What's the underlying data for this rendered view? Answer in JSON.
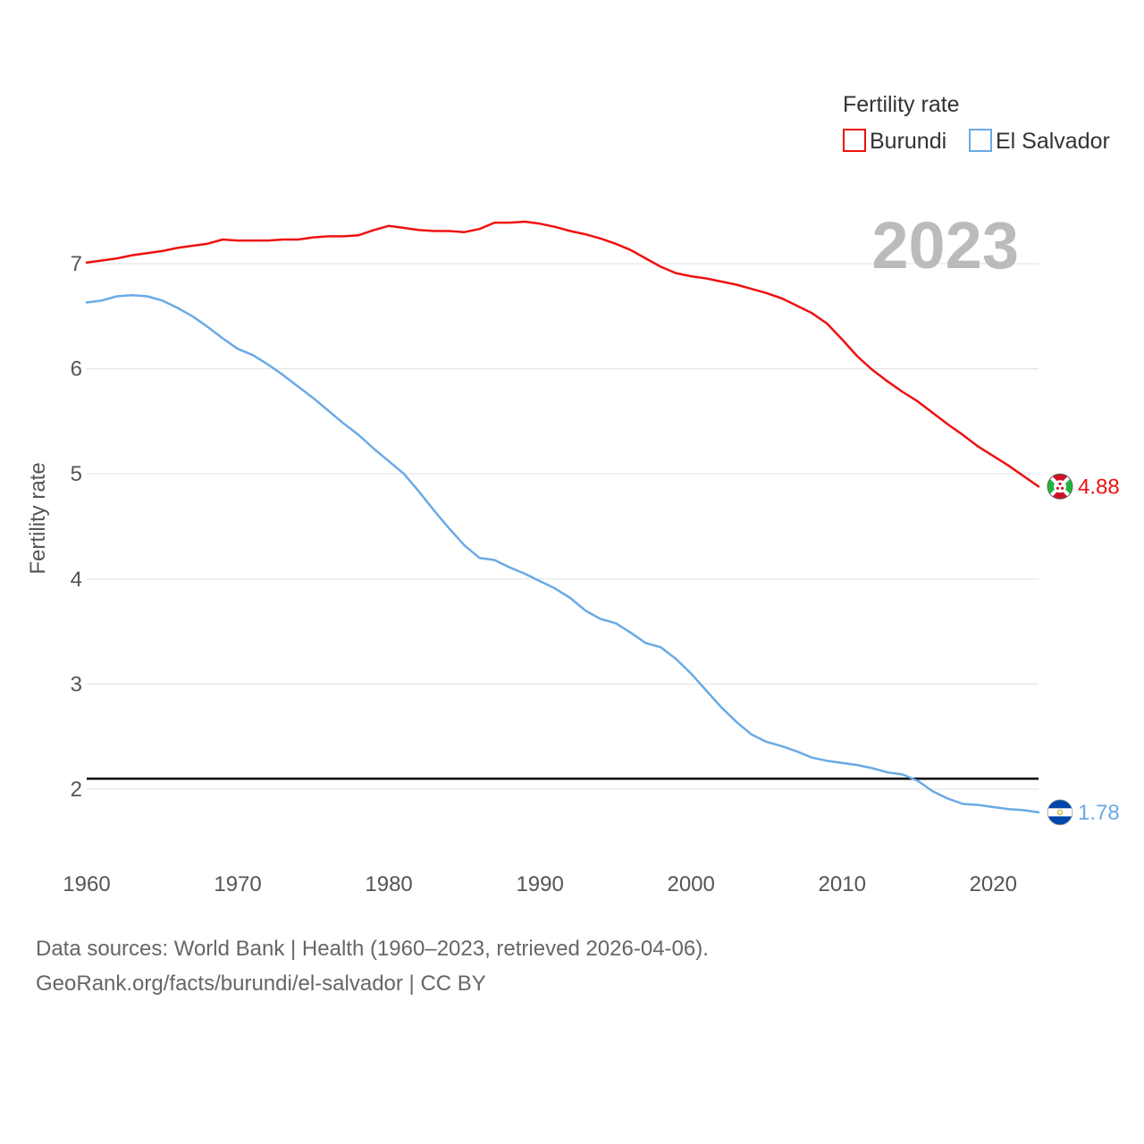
{
  "chart_data": {
    "type": "line",
    "ylabel": "Fertility rate",
    "xlabel": "",
    "legend_title": "Fertility rate",
    "legend_position": "top-right",
    "year_label": "2023",
    "xlim": [
      1960,
      2023
    ],
    "ylim": [
      1.5,
      7.8
    ],
    "x_ticks": [
      1960,
      1970,
      1980,
      1990,
      2000,
      2010,
      2020
    ],
    "y_ticks": [
      2,
      3,
      4,
      5,
      6,
      7
    ],
    "grid": true,
    "reference_line": {
      "y": 2.1,
      "color": "#000000"
    },
    "x": [
      1960,
      1961,
      1962,
      1963,
      1964,
      1965,
      1966,
      1967,
      1968,
      1969,
      1970,
      1971,
      1972,
      1973,
      1974,
      1975,
      1976,
      1977,
      1978,
      1979,
      1980,
      1981,
      1982,
      1983,
      1984,
      1985,
      1986,
      1987,
      1988,
      1989,
      1990,
      1991,
      1992,
      1993,
      1994,
      1995,
      1996,
      1997,
      1998,
      1999,
      2000,
      2001,
      2002,
      2003,
      2004,
      2005,
      2006,
      2007,
      2008,
      2009,
      2010,
      2011,
      2012,
      2013,
      2014,
      2015,
      2016,
      2017,
      2018,
      2019,
      2020,
      2021,
      2022,
      2023
    ],
    "series": [
      {
        "name": "Burundi",
        "color": "#ee1111",
        "end_label": "4.88",
        "flag_icon": "burundi-flag-icon",
        "values": [
          7.01,
          7.03,
          7.05,
          7.08,
          7.1,
          7.12,
          7.15,
          7.17,
          7.19,
          7.23,
          7.22,
          7.22,
          7.22,
          7.23,
          7.23,
          7.25,
          7.26,
          7.26,
          7.27,
          7.32,
          7.36,
          7.34,
          7.32,
          7.31,
          7.31,
          7.3,
          7.33,
          7.39,
          7.39,
          7.4,
          7.38,
          7.35,
          7.31,
          7.28,
          7.24,
          7.19,
          7.13,
          7.05,
          6.97,
          6.91,
          6.88,
          6.86,
          6.83,
          6.8,
          6.76,
          6.72,
          6.67,
          6.6,
          6.53,
          6.43,
          6.28,
          6.12,
          5.99,
          5.88,
          5.78,
          5.69,
          5.58,
          5.47,
          5.37,
          5.26,
          5.17,
          5.08,
          4.98,
          4.88
        ]
      },
      {
        "name": "El Salvador",
        "color": "#6aaae6",
        "end_label": "1.78",
        "flag_icon": "el-salvador-flag-icon",
        "values": [
          6.63,
          6.65,
          6.69,
          6.7,
          6.69,
          6.65,
          6.58,
          6.5,
          6.4,
          6.29,
          6.19,
          6.13,
          6.04,
          5.94,
          5.83,
          5.72,
          5.6,
          5.48,
          5.37,
          5.24,
          5.12,
          5.0,
          4.83,
          4.65,
          4.48,
          4.32,
          4.2,
          4.18,
          4.11,
          4.05,
          3.98,
          3.91,
          3.82,
          3.7,
          3.62,
          3.58,
          3.49,
          3.39,
          3.35,
          3.24,
          3.1,
          2.94,
          2.78,
          2.64,
          2.52,
          2.45,
          2.41,
          2.36,
          2.3,
          2.27,
          2.25,
          2.23,
          2.2,
          2.16,
          2.14,
          2.08,
          1.98,
          1.91,
          1.86,
          1.85,
          1.83,
          1.81,
          1.8,
          1.78
        ]
      }
    ],
    "source_line_1": "Data sources: World Bank | Health (1960–2023, retrieved 2026-04-06).",
    "source_line_2": "GeoRank.org/facts/burundi/el-salvador | CC BY"
  }
}
